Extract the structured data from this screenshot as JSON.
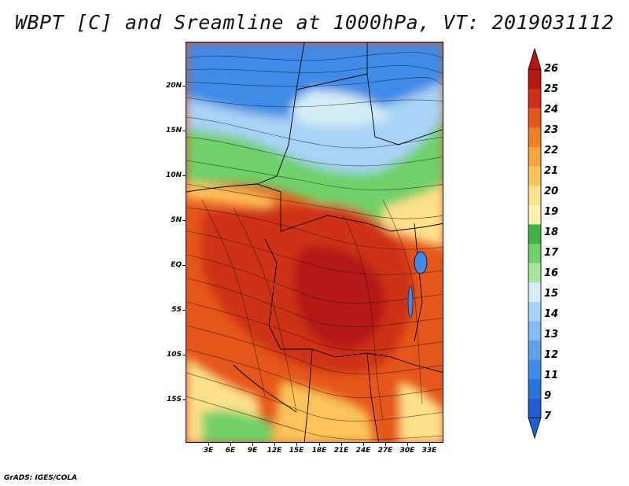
{
  "title": "WBPT [C] and Sreamline at 1000hPa, VT: 2019031112",
  "footer": "GrADS: IGES/COLA",
  "map": {
    "lat_labels": [
      "20N",
      "15N",
      "10N",
      "5N",
      "EQ",
      "5S",
      "10S",
      "15S"
    ],
    "lon_labels": [
      "3E",
      "6E",
      "9E",
      "12E",
      "15E",
      "18E",
      "21E",
      "24E",
      "27E",
      "30E",
      "33E"
    ],
    "region": "Central Africa"
  },
  "colorbar": {
    "levels": [
      "7",
      "9",
      "11",
      "12",
      "13",
      "14",
      "15",
      "16",
      "17",
      "18",
      "19",
      "20",
      "21",
      "22",
      "23",
      "24",
      "25",
      "26"
    ],
    "colors": [
      "#1f5fd6",
      "#2a74e0",
      "#3f8ae8",
      "#5ea2ee",
      "#82baf2",
      "#a8d2f6",
      "#d3ecf6",
      "#a8e49a",
      "#6fd06a",
      "#3cb44a",
      "#fff2b0",
      "#fde08a",
      "#fcc35a",
      "#f8a33a",
      "#f07f24",
      "#e6561a",
      "#cf3015",
      "#b51812"
    ]
  }
}
